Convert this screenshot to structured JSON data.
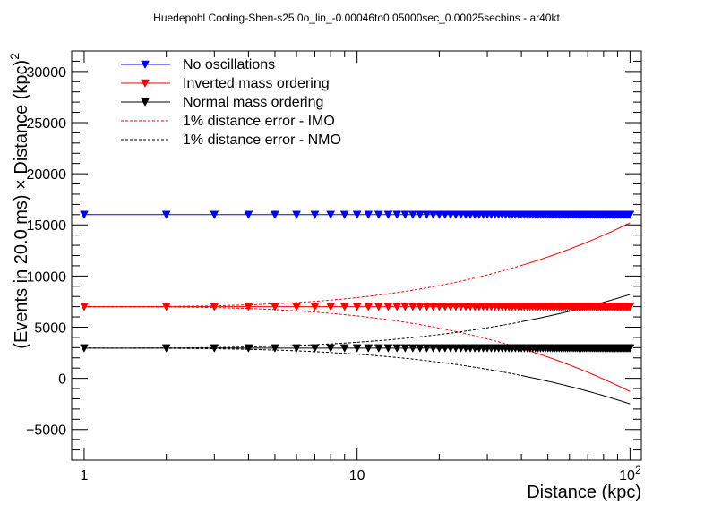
{
  "chart_data": {
    "type": "line",
    "title": "Huedepohl Cooling-Shen-s25.0o_lin_-0.00046to0.05000sec_0.00025secbins - ar40kt",
    "xlabel": "Distance (kpc)",
    "ylabel_main": "(Events in 20.0 ms) × Distance (kpc)",
    "ylabel_sup": "2",
    "xscale": "log",
    "xlim": [
      0.9,
      110
    ],
    "ylim": [
      -8000,
      32000
    ],
    "xticks": [
      {
        "value": 1,
        "label": "1"
      },
      {
        "value": 10,
        "label": "10"
      },
      {
        "value": 100,
        "label": "10",
        "sup": "2"
      }
    ],
    "yticks": [
      -5000,
      0,
      5000,
      10000,
      15000,
      20000,
      25000,
      30000
    ],
    "ytick_labels": [
      "−5000",
      "0",
      "5000",
      "10000",
      "15000",
      "20000",
      "25000",
      "30000"
    ],
    "x": [
      1,
      2,
      3,
      4,
      5,
      6,
      7,
      8,
      9,
      10,
      11,
      12,
      13,
      14,
      15,
      16,
      17,
      18,
      19,
      20,
      21,
      22,
      23,
      24,
      25,
      26,
      27,
      28,
      29,
      30,
      31,
      32,
      33,
      34,
      35,
      36,
      37,
      38,
      39,
      40,
      41,
      42,
      43,
      44,
      45,
      46,
      47,
      48,
      49,
      50,
      51,
      52,
      53,
      54,
      55,
      56,
      57,
      58,
      59,
      60,
      61,
      62,
      63,
      64,
      65,
      66,
      67,
      68,
      69,
      70,
      71,
      72,
      73,
      74,
      75,
      76,
      77,
      78,
      79,
      80,
      81,
      82,
      83,
      84,
      85,
      86,
      87,
      88,
      89,
      90,
      91,
      92,
      93,
      94,
      95,
      96,
      97,
      98,
      99,
      100
    ],
    "series": [
      {
        "name": "No oscillations",
        "style": "marker-line",
        "color": "#0000ff",
        "value": 16000
      },
      {
        "name": "Inverted mass ordering",
        "style": "marker-line",
        "color": "#ff0000",
        "value": 7000
      },
      {
        "name": "Normal mass ordering",
        "style": "marker-line",
        "color": "#000000",
        "value": 2950
      },
      {
        "name": "1% distance error - IMO",
        "style": "dashed",
        "color": "#ff0000",
        "value": 7000,
        "bands": {
          "upper_solid_start": 40,
          "lower_solid_start": 40
        }
      },
      {
        "name": "1% distance error - NMO",
        "style": "dashed",
        "color": "#000000",
        "value": 2950,
        "bands": {
          "upper_solid_start": 40,
          "lower_solid_start": 40
        }
      }
    ],
    "error_band_endpoints": {
      "IMO": {
        "upper_at_100": 15200,
        "lower_at_100": -1300
      },
      "NMO": {
        "upper_at_100": 8200,
        "lower_at_100": -2500
      }
    },
    "legend_position": "top-left",
    "grid": false
  }
}
